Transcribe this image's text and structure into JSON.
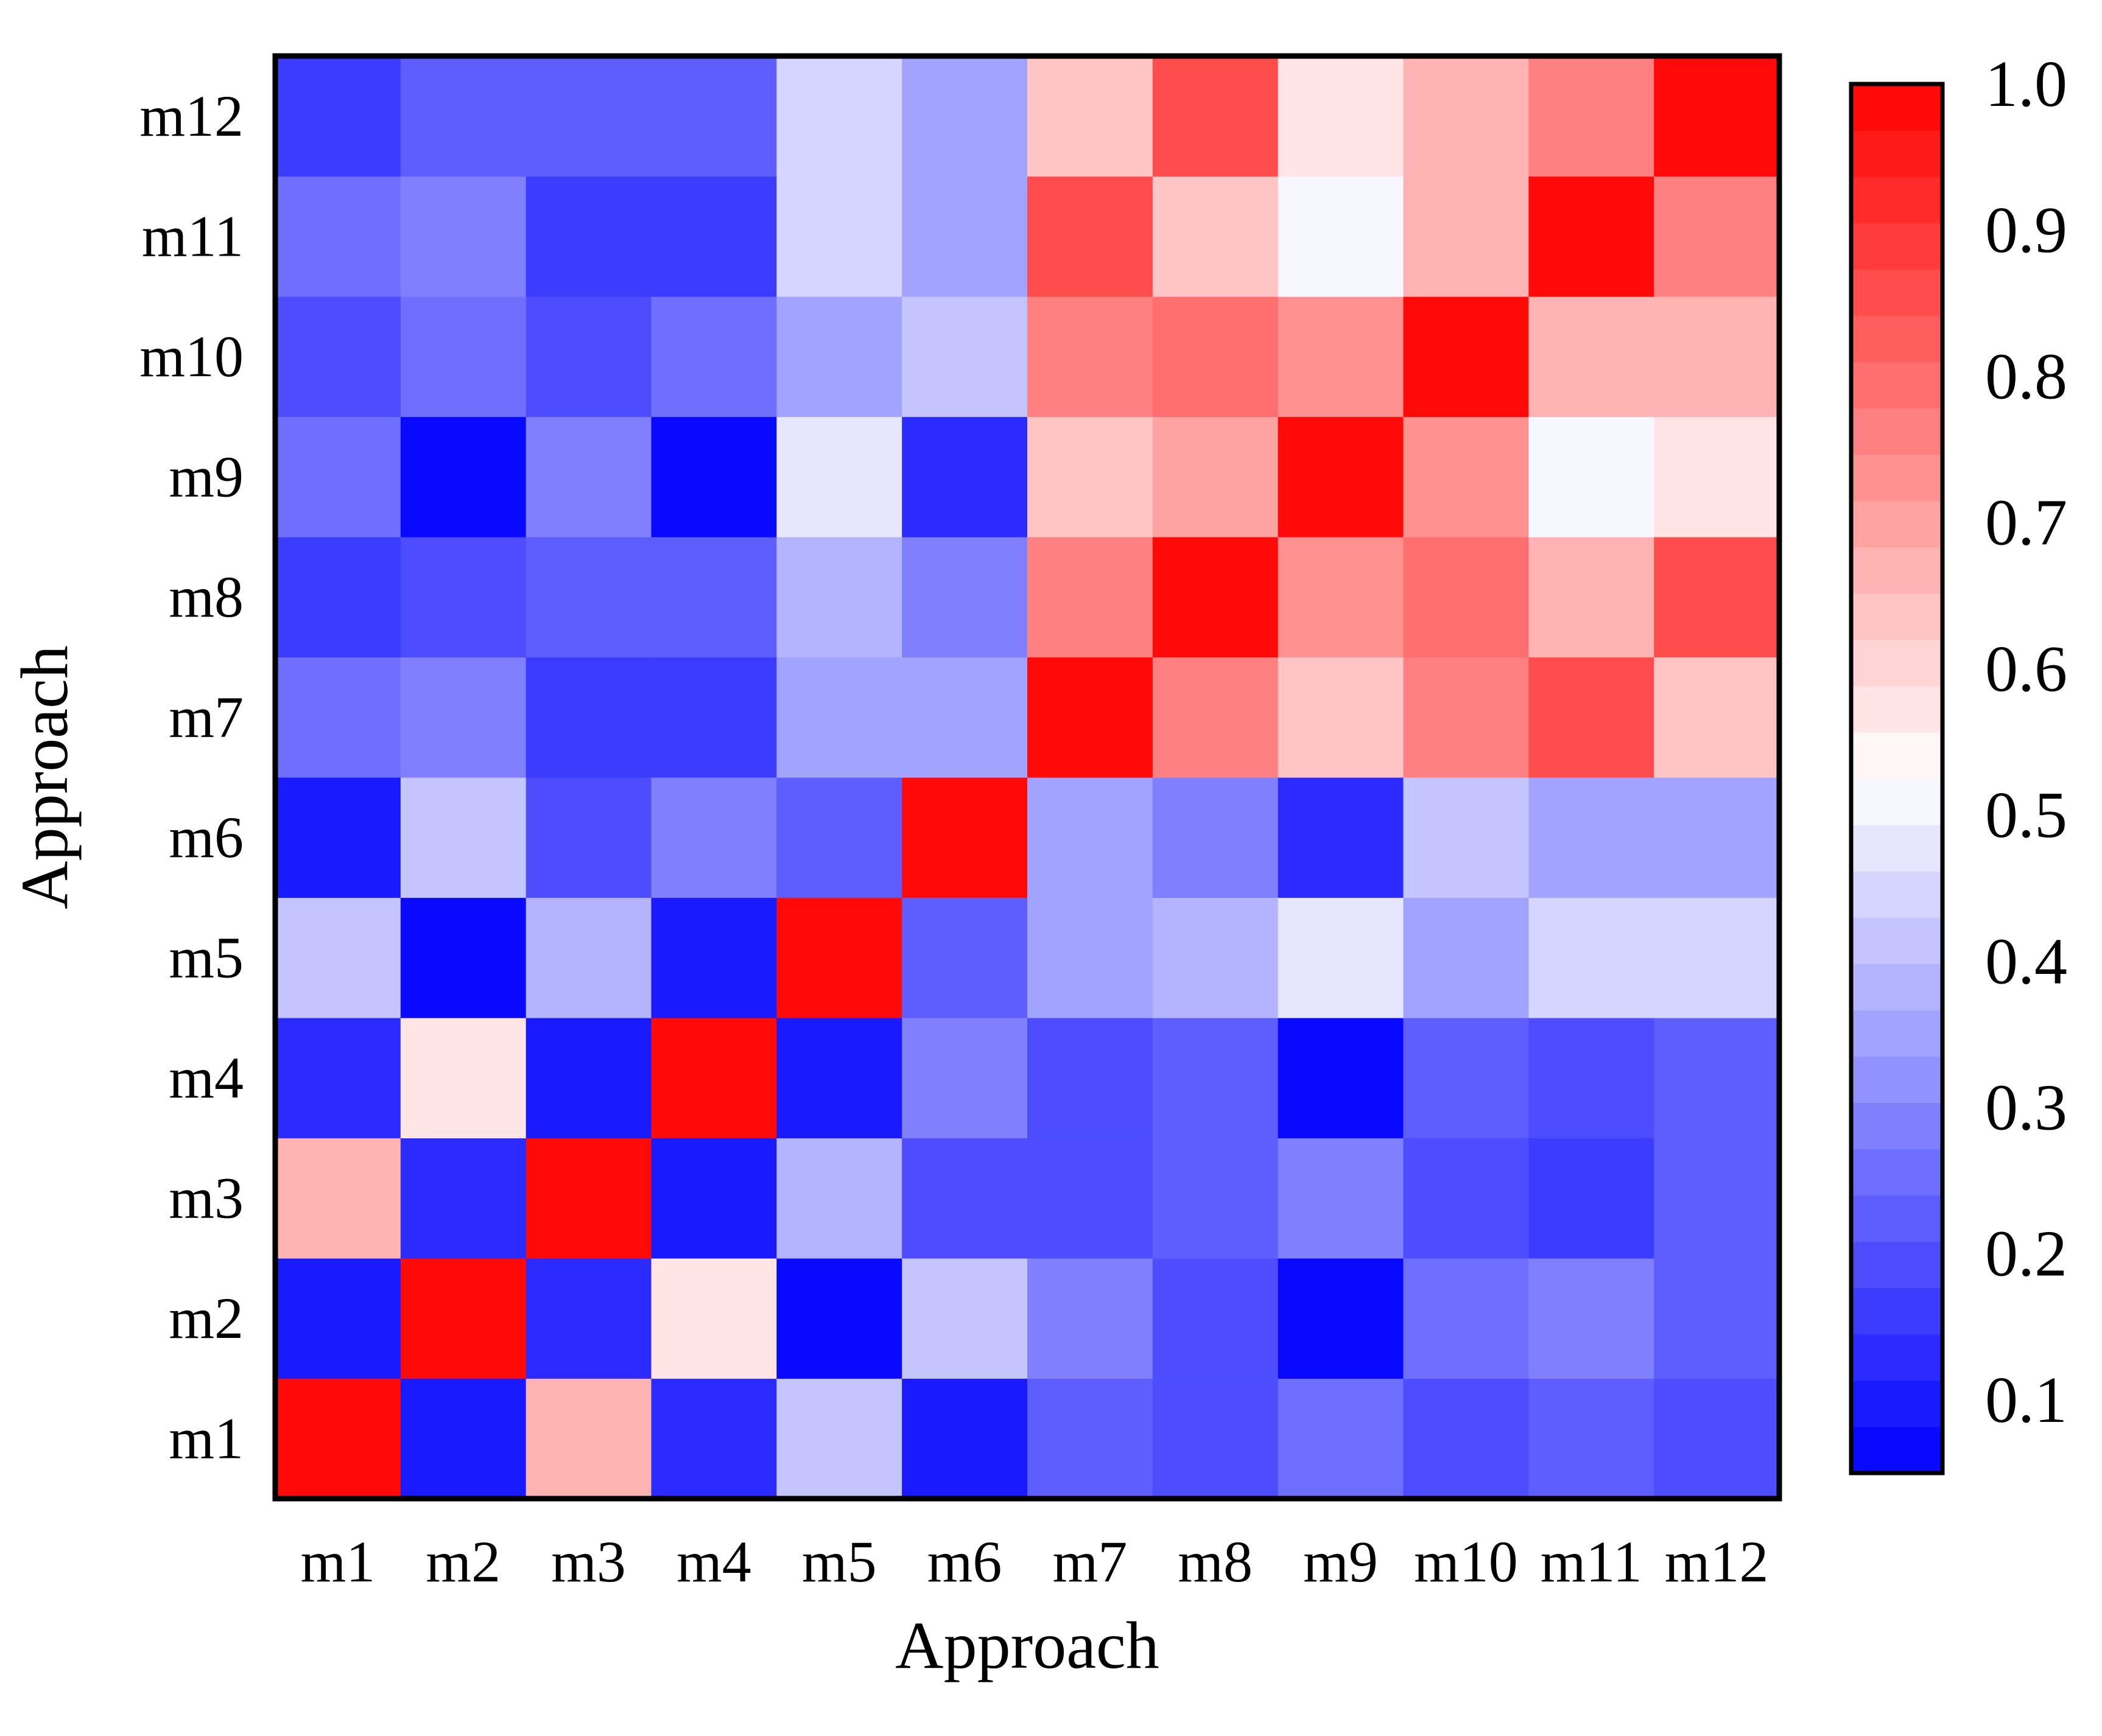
{
  "chart_data": {
    "type": "heatmap",
    "title": "",
    "xlabel": "Approach",
    "ylabel": "Approach",
    "x_categories": [
      "m1",
      "m2",
      "m3",
      "m4",
      "m5",
      "m6",
      "m7",
      "m8",
      "m9",
      "m10",
      "m11",
      "m12"
    ],
    "y_categories": [
      "m1",
      "m2",
      "m3",
      "m4",
      "m5",
      "m6",
      "m7",
      "m8",
      "m9",
      "m10",
      "m11",
      "m12"
    ],
    "matrix_rows_order": "m1 to m12 (m1 at bottom)",
    "values": [
      [
        1.0,
        0.1,
        0.68,
        0.12,
        0.4,
        0.1,
        0.22,
        0.18,
        0.26,
        0.2,
        0.22,
        0.18
      ],
      [
        0.1,
        1.0,
        0.12,
        0.58,
        0.08,
        0.42,
        0.28,
        0.2,
        0.07,
        0.25,
        0.28,
        0.22
      ],
      [
        0.68,
        0.12,
        1.0,
        0.1,
        0.38,
        0.18,
        0.18,
        0.22,
        0.3,
        0.2,
        0.16,
        0.22
      ],
      [
        0.12,
        0.58,
        0.1,
        1.0,
        0.1,
        0.3,
        0.18,
        0.22,
        0.07,
        0.22,
        0.18,
        0.22
      ],
      [
        0.4,
        0.08,
        0.38,
        0.1,
        1.0,
        0.22,
        0.34,
        0.38,
        0.48,
        0.34,
        0.44,
        0.44
      ],
      [
        0.1,
        0.42,
        0.18,
        0.3,
        0.22,
        1.0,
        0.34,
        0.3,
        0.14,
        0.42,
        0.34,
        0.34
      ],
      [
        0.24,
        0.3,
        0.16,
        0.16,
        0.34,
        0.34,
        1.0,
        0.76,
        0.64,
        0.76,
        0.86,
        0.64
      ],
      [
        0.16,
        0.2,
        0.22,
        0.22,
        0.38,
        0.3,
        0.76,
        1.0,
        0.72,
        0.8,
        0.66,
        0.86
      ],
      [
        0.26,
        0.05,
        0.3,
        0.05,
        0.48,
        0.12,
        0.64,
        0.7,
        1.0,
        0.72,
        0.52,
        0.58
      ],
      [
        0.2,
        0.26,
        0.2,
        0.24,
        0.34,
        0.42,
        0.76,
        0.8,
        0.72,
        1.0,
        0.68,
        0.68
      ],
      [
        0.24,
        0.3,
        0.16,
        0.16,
        0.44,
        0.34,
        0.86,
        0.64,
        0.52,
        0.68,
        1.0,
        0.76
      ],
      [
        0.16,
        0.22,
        0.22,
        0.22,
        0.44,
        0.34,
        0.64,
        0.86,
        0.58,
        0.68,
        0.76,
        1.0
      ]
    ],
    "colorbar": {
      "ticks": [
        "0.1",
        "0.2",
        "0.3",
        "0.4",
        "0.5",
        "0.6",
        "0.7",
        "0.8",
        "0.9",
        "1.0"
      ],
      "range": [
        0.05,
        1.0
      ],
      "levels": 30,
      "low_color": "#0000ff",
      "mid_color": "#ffffff",
      "high_color": "#ff0000"
    },
    "grid": false
  }
}
